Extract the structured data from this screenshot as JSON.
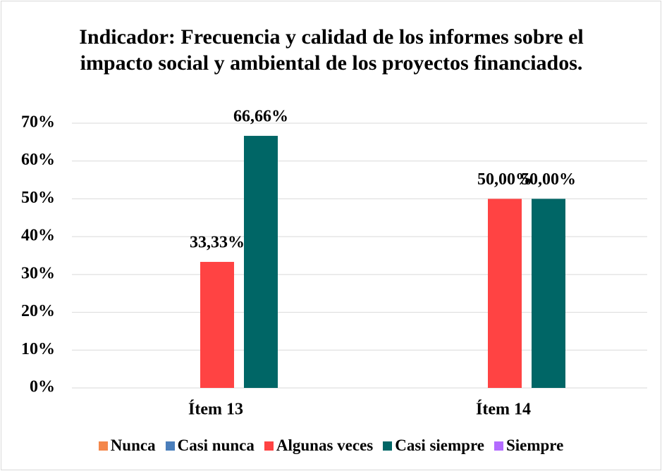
{
  "chart_data": {
    "type": "bar",
    "title": "Indicador: Frecuencia y calidad de los informes sobre el impacto social y ambiental de los proyectos financiados.",
    "categories": [
      "Ítem 13",
      "Ítem 14"
    ],
    "series": [
      {
        "name": "Nunca",
        "color": "#f4874b",
        "values": [
          0,
          0
        ]
      },
      {
        "name": "Casi nunca",
        "color": "#4a7ebb",
        "values": [
          0,
          0
        ]
      },
      {
        "name": "Algunas veces",
        "color": "#ff4343",
        "values": [
          33.33,
          50
        ],
        "value_labels": [
          "33,33%",
          "50,00%"
        ]
      },
      {
        "name": "Casi siempre",
        "color": "#006666",
        "values": [
          66.66,
          50
        ],
        "value_labels": [
          "66,66%",
          "50,00%"
        ]
      },
      {
        "name": "Siempre",
        "color": "#b36bff",
        "values": [
          0,
          0
        ]
      }
    ],
    "ylim": [
      0,
      70
    ],
    "yticks": [
      {
        "value": 0,
        "label": "0%"
      },
      {
        "value": 10,
        "label": "10%"
      },
      {
        "value": 20,
        "label": "20%"
      },
      {
        "value": 30,
        "label": "30%"
      },
      {
        "value": 40,
        "label": "40%"
      },
      {
        "value": 50,
        "label": "50%"
      },
      {
        "value": 60,
        "label": "60%"
      },
      {
        "value": 70,
        "label": "70%"
      }
    ],
    "grid": true,
    "legend": "bottom"
  }
}
